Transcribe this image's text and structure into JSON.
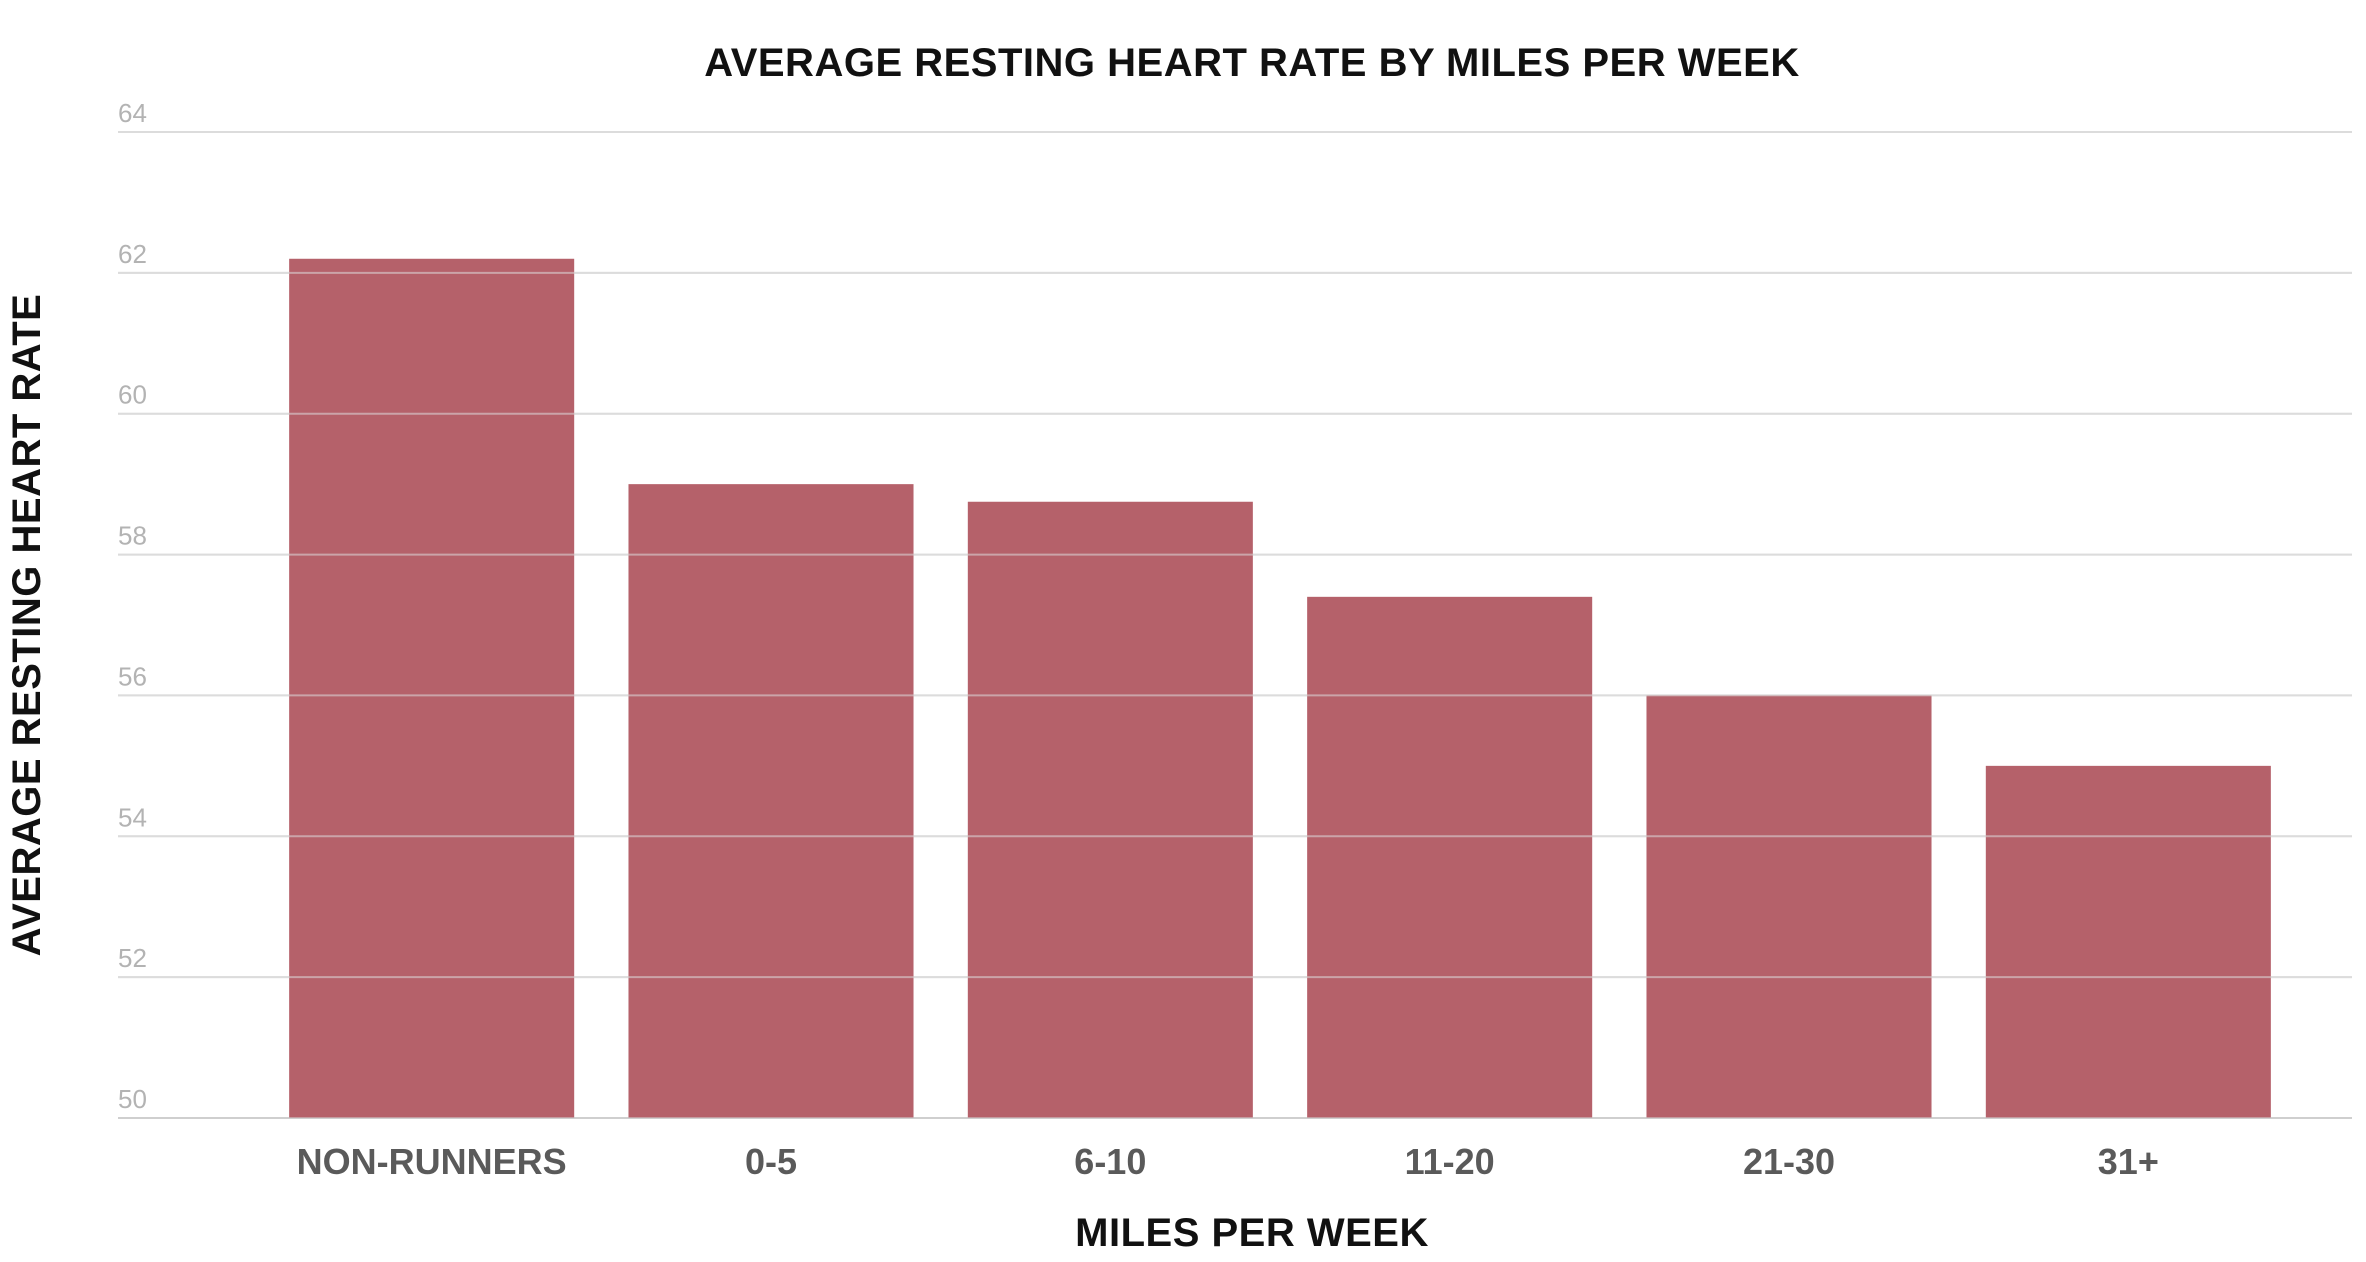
{
  "chart_data": {
    "type": "bar",
    "title": "AVERAGE RESTING HEART RATE BY MILES PER WEEK",
    "xlabel": "MILES PER WEEK",
    "ylabel": "AVERAGE RESTING HEART RATE",
    "categories": [
      "NON-RUNNERS",
      "0-5",
      "6-10",
      "11-20",
      "21-30",
      "31+"
    ],
    "values": [
      62.2,
      59.0,
      58.75,
      57.4,
      56.0,
      55.0
    ],
    "ylim": [
      50,
      64
    ],
    "yticks": [
      50,
      52,
      54,
      56,
      58,
      60,
      62,
      64
    ],
    "grid": true,
    "bar_color": "#b5616a"
  }
}
